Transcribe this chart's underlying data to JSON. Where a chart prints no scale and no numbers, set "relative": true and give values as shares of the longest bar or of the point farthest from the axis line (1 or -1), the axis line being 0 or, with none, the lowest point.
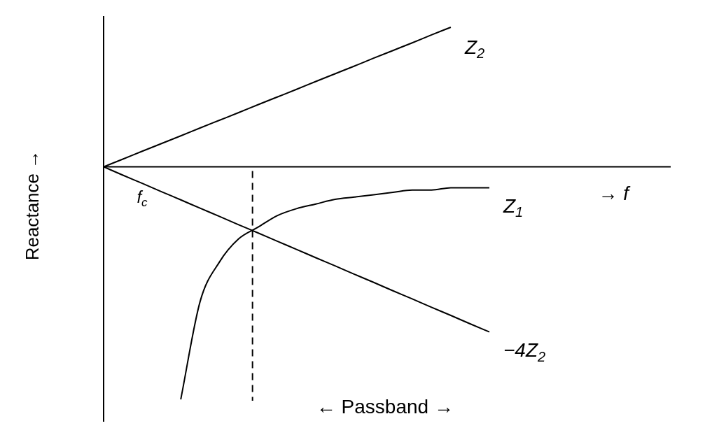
{
  "chart_data": {
    "type": "line",
    "relative": true,
    "ylabel": "Reactance →",
    "marker": "none",
    "line_style": "solid",
    "categories": [
      null,
      null,
      null,
      null,
      null,
      null,
      null,
      null,
      null,
      null,
      null,
      null,
      null,
      null,
      null,
      null,
      null,
      null,
      null,
      null,
      null
    ],
    "series": [
      {
        "name": "Z$_{2}$",
        "color": "#000000",
        "values": [
          0,
          0.033,
          0.067,
          0.1,
          0.133,
          0.167,
          0.2,
          0.233,
          0.267,
          0.3,
          0.333,
          0.367,
          0.4,
          0.433,
          0.467,
          0.5,
          0.533,
          0.567,
          0.6,
          null,
          null
        ]
      },
      {
        "name": "Z$_{1}$",
        "color": "#000000",
        "values": [
          null,
          null,
          null,
          null,
          -1.0,
          -0.58,
          -0.41,
          -0.31,
          -0.26,
          -0.21,
          -0.18,
          -0.16,
          -0.14,
          -0.13,
          -0.12,
          -0.11,
          -0.1,
          -0.1,
          -0.09,
          -0.09,
          -0.09
        ]
      },
      {
        "name": "−4Z$_{2}$",
        "color": "#000000",
        "values": [
          0,
          -0.036,
          -0.071,
          -0.107,
          -0.142,
          -0.178,
          -0.213,
          -0.249,
          -0.284,
          -0.32,
          -0.355,
          -0.391,
          -0.426,
          -0.462,
          -0.497,
          -0.533,
          -0.568,
          -0.604,
          -0.639,
          -0.675,
          -0.71
        ]
      }
    ],
    "annotations": [
      "f$_{c}$",
      "← Passband →",
      "→ f"
    ]
  }
}
